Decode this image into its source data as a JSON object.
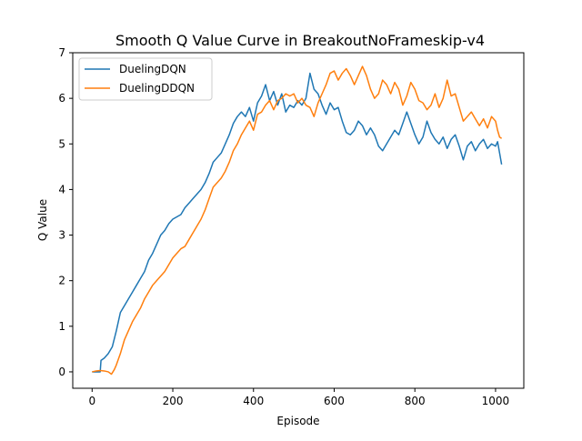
{
  "chart_data": {
    "type": "line",
    "title": "Smooth Q Value Curve in BreakoutNoFrameskip-v4",
    "xlabel": "Episode",
    "ylabel": "Q Value",
    "xlim": [
      -48,
      1070
    ],
    "ylim": [
      -0.36,
      7.0
    ],
    "xticks": [
      0,
      200,
      400,
      600,
      800,
      1000
    ],
    "yticks": [
      0,
      1,
      2,
      3,
      4,
      5,
      6,
      7
    ],
    "grid": false,
    "legend_position": "upper-left",
    "series": [
      {
        "name": "DuelingDQN",
        "color": "#1f77b4",
        "points": [
          [
            0,
            0
          ],
          [
            20,
            0
          ],
          [
            22,
            0.25
          ],
          [
            30,
            0.3
          ],
          [
            40,
            0.4
          ],
          [
            50,
            0.55
          ],
          [
            60,
            0.9
          ],
          [
            70,
            1.3
          ],
          [
            80,
            1.45
          ],
          [
            90,
            1.6
          ],
          [
            100,
            1.75
          ],
          [
            110,
            1.9
          ],
          [
            120,
            2.05
          ],
          [
            130,
            2.2
          ],
          [
            140,
            2.45
          ],
          [
            150,
            2.6
          ],
          [
            160,
            2.8
          ],
          [
            170,
            3.0
          ],
          [
            180,
            3.1
          ],
          [
            190,
            3.25
          ],
          [
            200,
            3.35
          ],
          [
            210,
            3.4
          ],
          [
            220,
            3.45
          ],
          [
            230,
            3.6
          ],
          [
            240,
            3.7
          ],
          [
            250,
            3.8
          ],
          [
            260,
            3.9
          ],
          [
            270,
            4.0
          ],
          [
            280,
            4.15
          ],
          [
            290,
            4.35
          ],
          [
            300,
            4.6
          ],
          [
            310,
            4.7
          ],
          [
            320,
            4.8
          ],
          [
            330,
            5.0
          ],
          [
            340,
            5.2
          ],
          [
            350,
            5.45
          ],
          [
            360,
            5.6
          ],
          [
            370,
            5.7
          ],
          [
            380,
            5.6
          ],
          [
            390,
            5.8
          ],
          [
            400,
            5.5
          ],
          [
            410,
            5.9
          ],
          [
            420,
            6.05
          ],
          [
            430,
            6.3
          ],
          [
            440,
            5.95
          ],
          [
            450,
            6.15
          ],
          [
            460,
            5.85
          ],
          [
            470,
            6.1
          ],
          [
            480,
            5.7
          ],
          [
            490,
            5.85
          ],
          [
            500,
            5.8
          ],
          [
            510,
            5.95
          ],
          [
            520,
            5.85
          ],
          [
            530,
            6.0
          ],
          [
            540,
            6.55
          ],
          [
            550,
            6.2
          ],
          [
            560,
            6.1
          ],
          [
            570,
            5.85
          ],
          [
            580,
            5.65
          ],
          [
            590,
            5.9
          ],
          [
            600,
            5.75
          ],
          [
            610,
            5.8
          ],
          [
            620,
            5.5
          ],
          [
            630,
            5.25
          ],
          [
            640,
            5.2
          ],
          [
            650,
            5.3
          ],
          [
            660,
            5.5
          ],
          [
            670,
            5.4
          ],
          [
            680,
            5.2
          ],
          [
            690,
            5.35
          ],
          [
            700,
            5.2
          ],
          [
            710,
            4.95
          ],
          [
            720,
            4.85
          ],
          [
            730,
            5.0
          ],
          [
            740,
            5.15
          ],
          [
            750,
            5.3
          ],
          [
            760,
            5.2
          ],
          [
            770,
            5.45
          ],
          [
            780,
            5.7
          ],
          [
            790,
            5.45
          ],
          [
            800,
            5.2
          ],
          [
            810,
            5.0
          ],
          [
            820,
            5.15
          ],
          [
            830,
            5.5
          ],
          [
            840,
            5.25
          ],
          [
            850,
            5.1
          ],
          [
            860,
            5.0
          ],
          [
            870,
            5.15
          ],
          [
            880,
            4.9
          ],
          [
            890,
            5.1
          ],
          [
            900,
            5.2
          ],
          [
            910,
            4.95
          ],
          [
            920,
            4.65
          ],
          [
            930,
            4.95
          ],
          [
            940,
            5.05
          ],
          [
            950,
            4.85
          ],
          [
            960,
            5.0
          ],
          [
            970,
            5.1
          ],
          [
            980,
            4.9
          ],
          [
            990,
            5.0
          ],
          [
            1000,
            4.95
          ],
          [
            1005,
            5.05
          ],
          [
            1010,
            4.8
          ],
          [
            1015,
            4.55
          ]
        ]
      },
      {
        "name": "DuelingDDQN",
        "color": "#ff7f0e",
        "points": [
          [
            0,
            0
          ],
          [
            10,
            0.02
          ],
          [
            20,
            0.03
          ],
          [
            30,
            0.02
          ],
          [
            40,
            0
          ],
          [
            48,
            -0.05
          ],
          [
            55,
            0.05
          ],
          [
            60,
            0.15
          ],
          [
            70,
            0.4
          ],
          [
            80,
            0.7
          ],
          [
            90,
            0.9
          ],
          [
            100,
            1.1
          ],
          [
            110,
            1.25
          ],
          [
            120,
            1.4
          ],
          [
            130,
            1.6
          ],
          [
            140,
            1.75
          ],
          [
            150,
            1.9
          ],
          [
            160,
            2.0
          ],
          [
            170,
            2.1
          ],
          [
            180,
            2.2
          ],
          [
            190,
            2.35
          ],
          [
            200,
            2.5
          ],
          [
            210,
            2.6
          ],
          [
            220,
            2.7
          ],
          [
            230,
            2.75
          ],
          [
            240,
            2.9
          ],
          [
            250,
            3.05
          ],
          [
            260,
            3.2
          ],
          [
            270,
            3.35
          ],
          [
            280,
            3.55
          ],
          [
            290,
            3.8
          ],
          [
            300,
            4.05
          ],
          [
            310,
            4.15
          ],
          [
            320,
            4.25
          ],
          [
            330,
            4.4
          ],
          [
            340,
            4.6
          ],
          [
            350,
            4.85
          ],
          [
            360,
            5.0
          ],
          [
            370,
            5.2
          ],
          [
            380,
            5.35
          ],
          [
            390,
            5.5
          ],
          [
            400,
            5.3
          ],
          [
            410,
            5.65
          ],
          [
            420,
            5.7
          ],
          [
            430,
            5.85
          ],
          [
            440,
            5.95
          ],
          [
            450,
            5.75
          ],
          [
            460,
            5.95
          ],
          [
            470,
            6.0
          ],
          [
            480,
            6.1
          ],
          [
            490,
            6.05
          ],
          [
            500,
            6.1
          ],
          [
            510,
            5.9
          ],
          [
            520,
            6.0
          ],
          [
            530,
            5.85
          ],
          [
            540,
            5.8
          ],
          [
            550,
            5.6
          ],
          [
            560,
            5.9
          ],
          [
            570,
            6.1
          ],
          [
            580,
            6.3
          ],
          [
            590,
            6.55
          ],
          [
            600,
            6.6
          ],
          [
            610,
            6.4
          ],
          [
            620,
            6.55
          ],
          [
            630,
            6.65
          ],
          [
            640,
            6.5
          ],
          [
            650,
            6.3
          ],
          [
            660,
            6.5
          ],
          [
            670,
            6.7
          ],
          [
            680,
            6.5
          ],
          [
            690,
            6.2
          ],
          [
            700,
            6.0
          ],
          [
            710,
            6.1
          ],
          [
            720,
            6.4
          ],
          [
            730,
            6.3
          ],
          [
            740,
            6.1
          ],
          [
            750,
            6.35
          ],
          [
            760,
            6.2
          ],
          [
            770,
            5.85
          ],
          [
            780,
            6.05
          ],
          [
            790,
            6.35
          ],
          [
            800,
            6.2
          ],
          [
            810,
            5.95
          ],
          [
            820,
            5.9
          ],
          [
            830,
            5.75
          ],
          [
            840,
            5.85
          ],
          [
            850,
            6.1
          ],
          [
            860,
            5.8
          ],
          [
            870,
            6.0
          ],
          [
            880,
            6.4
          ],
          [
            890,
            6.05
          ],
          [
            900,
            6.1
          ],
          [
            910,
            5.8
          ],
          [
            920,
            5.5
          ],
          [
            930,
            5.6
          ],
          [
            940,
            5.7
          ],
          [
            950,
            5.55
          ],
          [
            960,
            5.4
          ],
          [
            970,
            5.55
          ],
          [
            980,
            5.35
          ],
          [
            990,
            5.6
          ],
          [
            1000,
            5.5
          ],
          [
            1005,
            5.3
          ],
          [
            1010,
            5.15
          ],
          [
            1015,
            5.12
          ]
        ]
      }
    ]
  }
}
